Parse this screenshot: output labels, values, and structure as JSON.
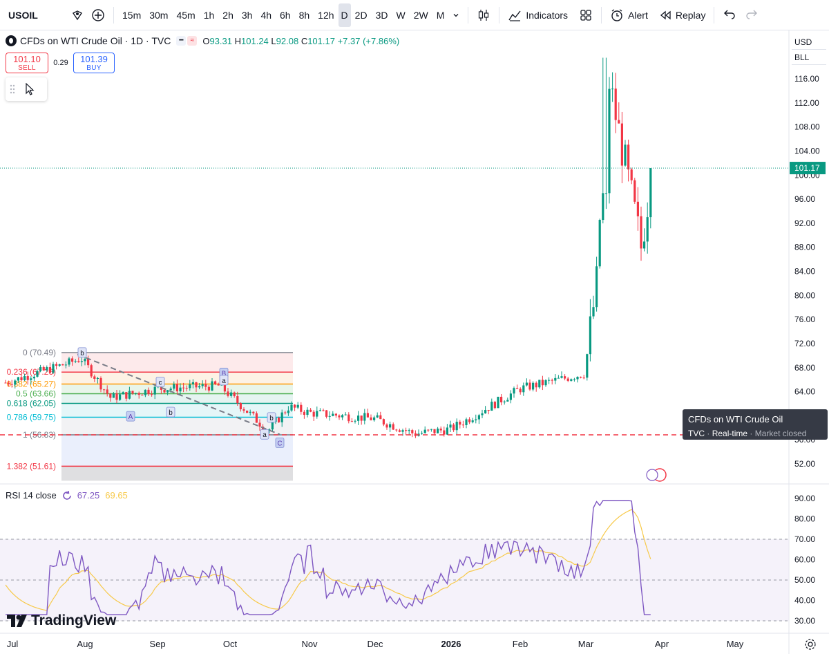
{
  "toolbar": {
    "symbol": "USOIL",
    "intervals": [
      "15m",
      "30m",
      "45m",
      "1h",
      "2h",
      "3h",
      "4h",
      "6h",
      "8h",
      "12h",
      "D",
      "2D",
      "3D",
      "W",
      "2W",
      "M"
    ],
    "active_interval": "D",
    "indicators_label": "Indicators",
    "alert_label": "Alert",
    "replay_label": "Replay"
  },
  "legend": {
    "title": "CFDs on WTI Crude Oil · 1D · TVC",
    "o_label": "O",
    "o": "93.31",
    "h_label": "H",
    "h": "101.24",
    "l_label": "L",
    "l": "92.08",
    "c_label": "C",
    "c": "101.17",
    "change": "+7.37 (+7.86%)"
  },
  "trade": {
    "sell_price": "101.10",
    "sell_label": "SELL",
    "spread": "0.29",
    "buy_price": "101.39",
    "buy_label": "BUY"
  },
  "currency": {
    "currency": "USD",
    "unit": "BLL"
  },
  "price_axis": {
    "labels": [
      "116.00",
      "112.00",
      "108.00",
      "104.00",
      "100.00",
      "96.00",
      "92.00",
      "88.00",
      "84.00",
      "80.00",
      "76.00",
      "72.00",
      "68.00",
      "64.00",
      "60.00",
      "56.00",
      "52.00"
    ],
    "last_price": "101.17"
  },
  "fib": {
    "levels": [
      {
        "label": "0 (70.49)",
        "value": 70.49,
        "color": "#787b86"
      },
      {
        "label": "0.236 (67.26)",
        "value": 67.26,
        "color": "#f23645"
      },
      {
        "label": "0.382 (65.27)",
        "value": 65.27,
        "color": "#ff9800"
      },
      {
        "label": "0.5 (63.66)",
        "value": 63.66,
        "color": "#4caf50"
      },
      {
        "label": "0.618 (62.05)",
        "value": 62.05,
        "color": "#089981"
      },
      {
        "label": "0.786 (59.75)",
        "value": 59.75,
        "color": "#00bcd4"
      },
      {
        "label": "1 (56.83)",
        "value": 56.83,
        "color": "#787b86"
      },
      {
        "label": "1.382 (51.61)",
        "value": 51.61,
        "color": "#f23645"
      }
    ],
    "wave_labels": [
      "b",
      "a",
      "A",
      "b",
      "c",
      "B",
      "b",
      "a",
      "C"
    ]
  },
  "rsi": {
    "title": "RSI 14 close",
    "value": "67.25",
    "ma": "69.65",
    "axis_labels": [
      "90.00",
      "80.00",
      "70.00",
      "60.00",
      "50.00",
      "40.00",
      "30.00"
    ]
  },
  "tooltip": {
    "title": "CFDs on WTI Crude Oil",
    "source": "TVC",
    "feed": "Real-time",
    "status": "Market closed"
  },
  "brand": "TradingView",
  "time_axis": [
    "Jul",
    "Aug",
    "Sep",
    "Oct",
    "Nov",
    "Dec",
    "2026",
    "Feb",
    "Mar",
    "Apr",
    "May"
  ],
  "colors": {
    "up": "#089981",
    "down": "#f23645",
    "rsi": "#7e57c2",
    "rsi_ma": "#f7c948"
  },
  "chart_data": {
    "type": "candlestick",
    "title": "CFDs on WTI Crude Oil · 1D · TVC",
    "ylim": [
      49,
      120
    ],
    "x_labels": [
      "Jul",
      "Aug",
      "Sep",
      "Oct",
      "Nov",
      "Dec",
      "2026",
      "Feb",
      "Mar",
      "Apr",
      "May"
    ],
    "waypoints": [
      {
        "t": "Jul",
        "close": 65.5
      },
      {
        "t": "Jul late",
        "close": 68.8
      },
      {
        "t": "Aug start",
        "close": 69.5
      },
      {
        "t": "Aug mid",
        "close": 63.0
      },
      {
        "t": "Sep",
        "close": 64.5
      },
      {
        "t": "Oct start",
        "close": 65.0
      },
      {
        "t": "Oct mid",
        "close": 57.5
      },
      {
        "t": "Oct late",
        "close": 61.5
      },
      {
        "t": "Nov",
        "close": 60.5
      },
      {
        "t": "Dec",
        "close": 59.5
      },
      {
        "t": "Dec late",
        "close": 57.0
      },
      {
        "t": "2026",
        "close": 57.8
      },
      {
        "t": "Feb",
        "close": 64.5
      },
      {
        "t": "Mar start",
        "close": 67.0
      },
      {
        "t": "Mar",
        "close": 84.0
      },
      {
        "t": "Mar spike high",
        "close": 119.5
      },
      {
        "t": "Mar late",
        "close": 88.0
      },
      {
        "t": "Last",
        "close": 101.17
      }
    ],
    "rsi_ylim": [
      27,
      93
    ]
  }
}
